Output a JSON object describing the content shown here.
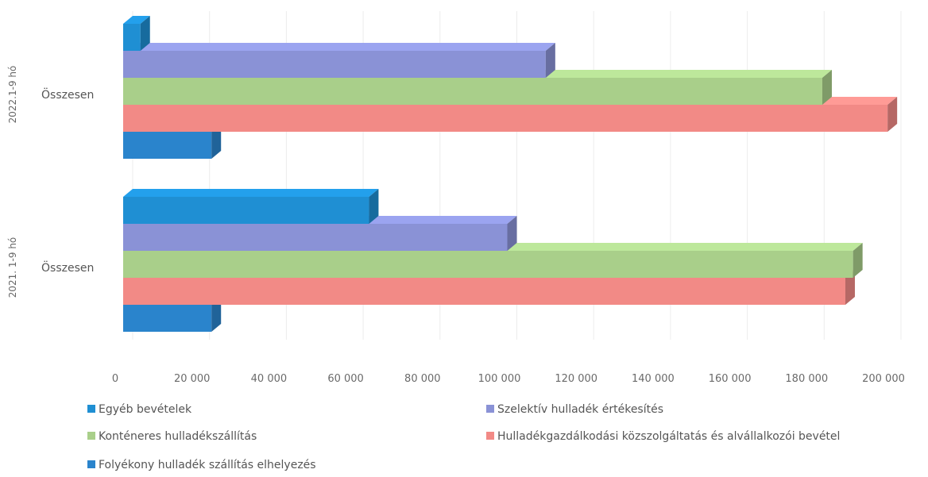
{
  "chart_data": {
    "type": "bar",
    "orientation": "horizontal",
    "three_d": true,
    "xlim": [
      0,
      200000
    ],
    "x_ticks": [
      "0",
      "20 000",
      "40 000",
      "60 000",
      "80 000",
      "100 000",
      "120 000",
      "140 000",
      "160 000",
      "180 000",
      "200 000"
    ],
    "grid": true,
    "legend_position": "bottom",
    "groups": [
      {
        "label": "2022.1-9 hó",
        "category": "Összesen"
      },
      {
        "label": "2021. 1-9 hó",
        "category": "Összesen"
      }
    ],
    "series": [
      {
        "name": "Egyéb bevételek",
        "color": "#1f8fd3",
        "values": [
          4500,
          64000
        ]
      },
      {
        "name": "Szelektív hulladék értékesítés",
        "color": "#8a92d6",
        "values": [
          110000,
          100000
        ]
      },
      {
        "name": "Konténeres hulladékszállítás",
        "color": "#a9cf8a",
        "values": [
          182000,
          190000
        ]
      },
      {
        "name": "Hulladékgazdálkodási közszolgáltatás és alvállalkozói bevétel",
        "color": "#f28a86",
        "values": [
          199000,
          188000
        ]
      },
      {
        "name": "Folyékony hulladék szállítás elhelyezés",
        "color": "#2a84cc",
        "values": [
          23000,
          23000
        ]
      }
    ]
  }
}
